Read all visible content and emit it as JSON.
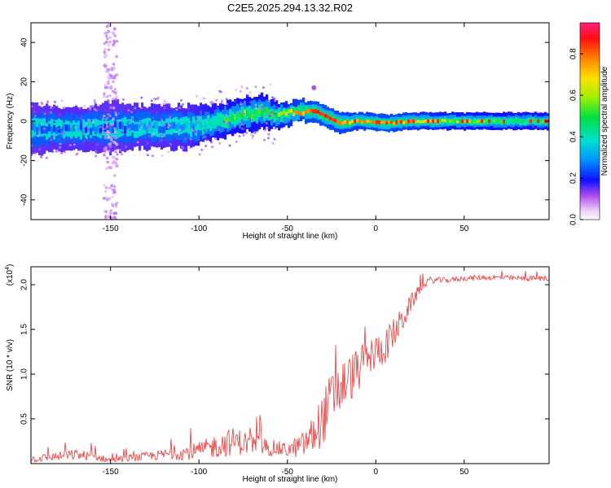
{
  "title": "C2E5.2025.294.13.32.R02",
  "chart_data": [
    {
      "type": "heatmap",
      "name": "spectrogram",
      "xlabel": "Height of straight line (km)",
      "ylabel": "Frequency (Hz)",
      "xlim": [
        -195,
        98
      ],
      "ylim": [
        -50,
        50
      ],
      "xticks": [
        -150,
        -100,
        -50,
        0,
        50
      ],
      "yticks": [
        40,
        20,
        0,
        -20,
        -40
      ],
      "colorbar": {
        "label": "Normalized spectral amplitude",
        "range": [
          0.0,
          0.95
        ],
        "ticks": [
          0.0,
          0.2,
          0.4,
          0.6,
          0.8
        ]
      },
      "ridge": {
        "x": [
          -195,
          -180,
          -165,
          -150,
          -135,
          -120,
          -105,
          -95,
          -85,
          -75,
          -65,
          -55,
          -45,
          -35,
          -28,
          -20,
          -12,
          -5,
          5,
          20,
          40,
          60,
          80,
          98
        ],
        "freq": [
          -4,
          -4,
          -4,
          -3,
          -3,
          -3,
          -3,
          -1,
          1,
          3,
          5,
          3,
          5,
          5,
          2,
          -1,
          0,
          0,
          -1,
          0,
          0,
          0,
          0,
          0
        ],
        "amplitude": [
          0.25,
          0.3,
          0.3,
          0.25,
          0.3,
          0.3,
          0.35,
          0.45,
          0.5,
          0.55,
          0.5,
          0.6,
          0.75,
          0.85,
          0.85,
          0.8,
          0.75,
          0.8,
          0.85,
          0.75,
          0.6,
          0.55,
          0.5,
          0.5
        ],
        "bandwidth_hz": [
          12,
          10,
          10,
          12,
          10,
          10,
          10,
          8,
          8,
          8,
          8,
          6,
          5,
          5,
          5,
          5,
          4,
          4,
          4,
          4,
          4,
          4,
          4,
          4
        ]
      },
      "scatter_column_x": -150,
      "annotations": [
        {
          "x": -35,
          "freq": 17
        }
      ]
    },
    {
      "type": "line",
      "name": "snr",
      "xlabel": "Height of straight line (km)",
      "ylabel": "SNR (10 * v/v)",
      "y_multiplier": "(x10",
      "y_multiplier_exp": "4",
      "y_multiplier_close": ")",
      "xlim": [
        -195,
        98
      ],
      "ylim": [
        0.0,
        2.2
      ],
      "xticks": [
        -150,
        -100,
        -50,
        0,
        50
      ],
      "yticks": [
        0.5,
        1.0,
        1.5,
        2.0
      ],
      "series": [
        {
          "name": "SNR",
          "color": "#e83a3a",
          "x": [
            -195,
            -180,
            -170,
            -160,
            -150,
            -140,
            -130,
            -120,
            -110,
            -100,
            -90,
            -80,
            -70,
            -60,
            -50,
            -42,
            -36,
            -30,
            -25,
            -20,
            -15,
            -10,
            -5,
            0,
            5,
            10,
            15,
            20,
            25,
            30,
            40,
            50,
            60,
            70,
            80,
            90,
            98
          ],
          "y": [
            0.05,
            0.08,
            0.1,
            0.08,
            0.04,
            0.06,
            0.08,
            0.1,
            0.12,
            0.14,
            0.2,
            0.25,
            0.22,
            0.18,
            0.15,
            0.2,
            0.3,
            0.5,
            0.7,
            0.85,
            0.95,
            1.05,
            1.15,
            1.25,
            1.3,
            1.45,
            1.6,
            1.8,
            1.95,
            2.05,
            2.05,
            2.07,
            2.08,
            2.08,
            2.07,
            2.07,
            2.07
          ],
          "noise": [
            0.04,
            0.05,
            0.06,
            0.05,
            0.03,
            0.04,
            0.05,
            0.06,
            0.08,
            0.1,
            0.14,
            0.16,
            0.12,
            0.1,
            0.08,
            0.14,
            0.22,
            0.3,
            0.35,
            0.3,
            0.28,
            0.25,
            0.22,
            0.2,
            0.2,
            0.18,
            0.15,
            0.1,
            0.06,
            0.04,
            0.03,
            0.03,
            0.03,
            0.03,
            0.03,
            0.03,
            0.03
          ]
        }
      ]
    }
  ]
}
